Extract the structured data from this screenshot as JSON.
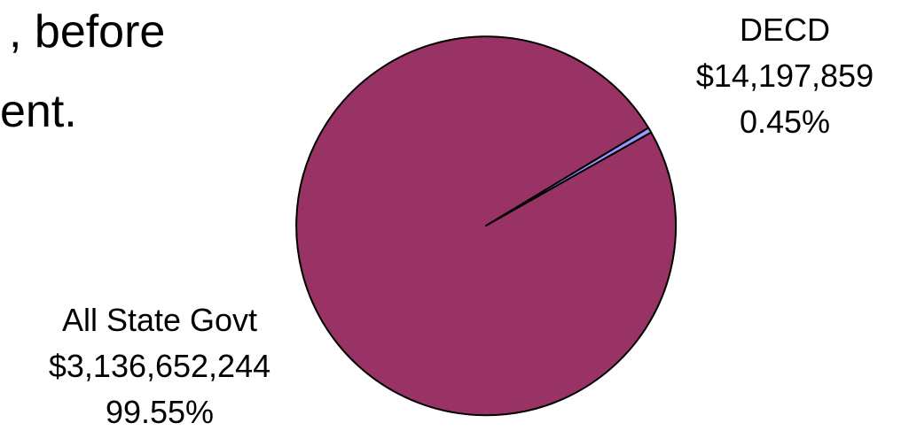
{
  "slide_text": {
    "line1": ", before",
    "line2": "ent."
  },
  "chart_data": {
    "type": "pie",
    "title": "",
    "slices": [
      {
        "name": "DECD",
        "value_label": "$14,197,859",
        "value": 14197859,
        "percent_label": "0.45%",
        "percent": 0.45,
        "color": "#9999ff"
      },
      {
        "name": "All State Govt",
        "value_label": "$3,136,652,244",
        "value": 3136652244,
        "percent_label": "99.55%",
        "percent": 99.55,
        "color": "#993366"
      }
    ],
    "legend": "none"
  }
}
